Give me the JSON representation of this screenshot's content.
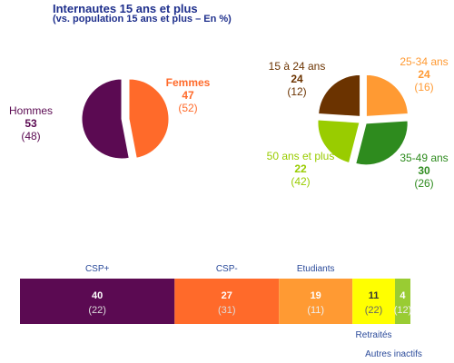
{
  "header": {
    "title": "Internautes 15 ans et plus",
    "subtitle": "(vs. population 15 ans et plus – En %)"
  },
  "colors": {
    "purple": "#5b0a52",
    "orange": "#ff6a2a",
    "light_orange": "#ff9a33",
    "brown": "#6b3300",
    "yellow_green": "#99cc00",
    "green": "#2e8b1e",
    "yellow": "#ffff00",
    "lime": "#99cc33"
  },
  "chart_data": [
    {
      "type": "pie",
      "slices": [
        {
          "name": "Hommes",
          "value": 53,
          "reference": "(48)"
        },
        {
          "name": "Femmes",
          "value": 47,
          "reference": "(52)"
        }
      ]
    },
    {
      "type": "pie",
      "slices": [
        {
          "name": "15 à 24 ans",
          "value": 24,
          "reference": "(12)"
        },
        {
          "name": "25-34 ans",
          "value": 24,
          "reference": "(16)"
        },
        {
          "name": "35-49 ans",
          "value": 30,
          "reference": "(26)"
        },
        {
          "name": "50 ans et plus",
          "value": 22,
          "reference": "(42)"
        }
      ]
    },
    {
      "type": "bar",
      "orientation": "horizontal-stacked",
      "categories": [
        "CSP+",
        "CSP-",
        "Etudiants",
        "Retraités",
        "Autres inactifs"
      ],
      "values": [
        40,
        27,
        19,
        11,
        4
      ],
      "references": [
        "(22)",
        "(31)",
        "(11)",
        "(22)",
        "(12)"
      ]
    }
  ]
}
